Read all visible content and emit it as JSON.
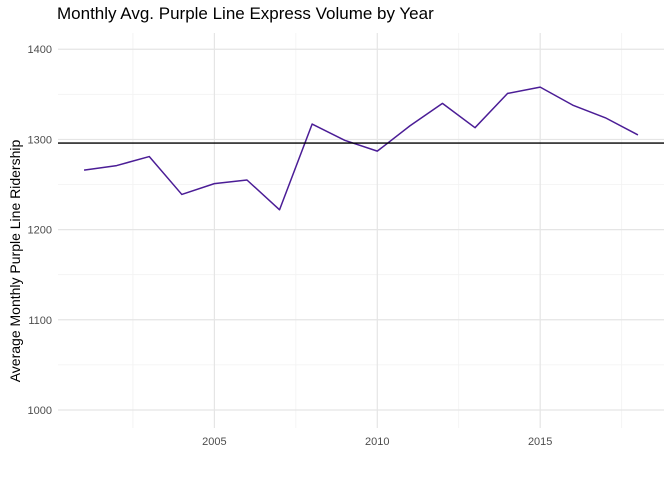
{
  "chart_data": {
    "type": "line",
    "title": "Monthly Avg. Purple Line Express Volume by Year",
    "xlabel": "",
    "ylabel": "Average Monthly Purple Line Ridership",
    "xlim": [
      2000.2,
      2018.8
    ],
    "ylim": [
      980,
      1418
    ],
    "x_ticks": [
      2005,
      2010,
      2015
    ],
    "x_minor_ticks": [
      2002.5,
      2007.5,
      2012.5,
      2017.5
    ],
    "y_ticks": [
      1000,
      1100,
      1200,
      1300,
      1400
    ],
    "y_minor_ticks": [
      1050,
      1150,
      1250,
      1350
    ],
    "grid": true,
    "series": [
      {
        "x": [
          2001,
          2002,
          2003,
          2004,
          2005,
          2006,
          2007,
          2008,
          2009,
          2010,
          2011,
          2012,
          2013,
          2014,
          2015,
          2016,
          2017,
          2018
        ],
        "values": [
          1266,
          1271,
          1281,
          1239,
          1251,
          1255,
          1222,
          1317,
          1299,
          1287,
          1315,
          1340,
          1313,
          1351,
          1358,
          1338,
          1324,
          1305
        ],
        "color": "#4b1d96"
      }
    ],
    "hline": {
      "y": 1296,
      "color": "#000000"
    }
  }
}
